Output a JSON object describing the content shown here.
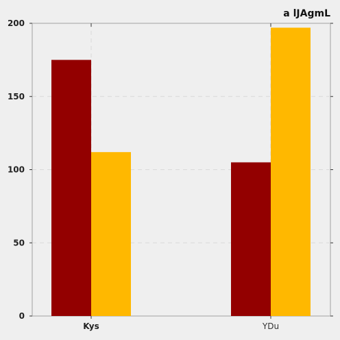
{
  "chart_data": {
    "type": "bar",
    "title": "a lJAgmL",
    "categories": [
      "Kys",
      "YDu"
    ],
    "series": [
      {
        "values": [
          175,
          105
        ],
        "color": "#930000"
      },
      {
        "values": [
          112,
          197
        ],
        "color": "#ffb800"
      }
    ],
    "ylim": [
      0,
      200
    ],
    "yticks": [
      0,
      50,
      100,
      150,
      200
    ],
    "grid": true,
    "legend": "none"
  }
}
